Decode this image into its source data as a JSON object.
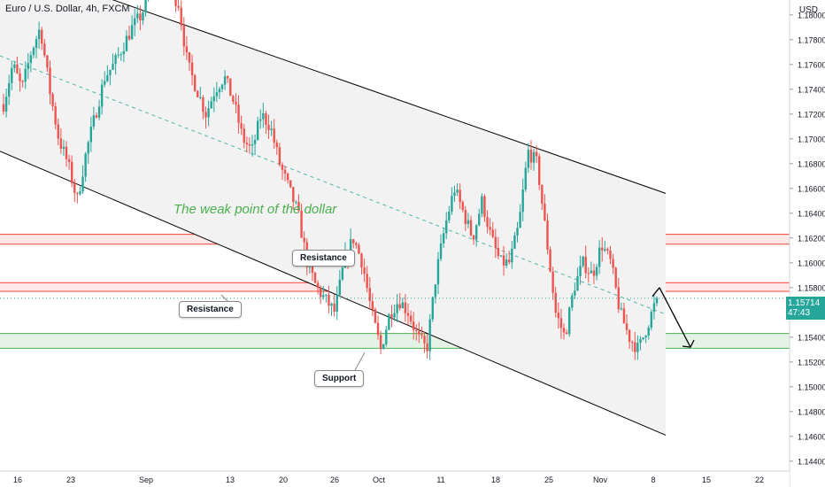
{
  "header": {
    "title": "Euro / U.S. Dollar, 4h, FXCM",
    "currency": "USD"
  },
  "annotations": {
    "headline": "The weak point of the dollar",
    "resistance_upper": "Resistance",
    "resistance_lower": "Resistance",
    "support": "Support"
  },
  "last_price": {
    "value": "1.15714",
    "countdown": "47:43"
  },
  "colors": {
    "up": "#26a69a",
    "down": "#ef5350",
    "resistance": "#f44336",
    "support": "#4caf50",
    "channel": "#000000",
    "headline": "#4caf50"
  },
  "chart_data": {
    "type": "candlestick",
    "symbol": "EURUSD",
    "timeframe": "4h",
    "x_tick_labels": [
      "16",
      "23",
      "Sep",
      "13",
      "20",
      "26",
      "Oct",
      "11",
      "18",
      "25",
      "Nov",
      "8",
      "15",
      "22"
    ],
    "y_tick_labels": [
      "1.18000",
      "1.17800",
      "1.17600",
      "1.17400",
      "1.17200",
      "1.17000",
      "1.16800",
      "1.16600",
      "1.16400",
      "1.16200",
      "1.16000",
      "1.15800",
      "1.15600",
      "1.15400",
      "1.15200",
      "1.15000",
      "1.14800",
      "1.14600",
      "1.14400"
    ],
    "ylim": [
      1.1432,
      1.1812
    ],
    "resistance_zones": [
      [
        1.1615,
        1.1623
      ],
      [
        1.1577,
        1.1584
      ]
    ],
    "support_zone": [
      1.1531,
      1.1543
    ],
    "channel_upper": [
      [
        "Aug 16",
        1.1844
      ],
      [
        "Nov 15",
        1.1656
      ]
    ],
    "channel_lower": [
      [
        "Aug 16",
        1.169
      ],
      [
        "Nov 15",
        1.1461
      ]
    ],
    "forecast_path": [
      [
        "Nov 8",
        1.158
      ],
      [
        "Nov 11",
        1.1532
      ]
    ],
    "price_path": [
      [
        1.1728,
        1.176,
        1.174,
        1.177,
        1.179,
        1.174,
        1.17,
        1.168,
        1.165,
        1.169,
        1.172,
        1.175,
        1.176,
        1.1775,
        1.179,
        1.18,
        1.182
      ],
      [
        1.183,
        1.182,
        1.181,
        1.176,
        1.174,
        1.172,
        1.174,
        1.175,
        1.173,
        1.17,
        1.169,
        1.172,
        1.171,
        1.168,
        1.166,
        1.164,
        1.16,
        1.158,
        1.157
      ],
      [
        1.156,
        1.16,
        1.162,
        1.16,
        1.156,
        1.153,
        1.156,
        1.157,
        1.156,
        1.154,
        1.153,
        1.159,
        1.163,
        1.166,
        1.164,
        1.162,
        1.165,
        1.162,
        1.16
      ],
      [
        1.16,
        1.163,
        1.169,
        1.168,
        1.162,
        1.156,
        1.154,
        1.158,
        1.16,
        1.159,
        1.1615,
        1.16,
        1.156,
        1.154,
        1.153,
        1.155,
        1.1571
      ]
    ]
  }
}
